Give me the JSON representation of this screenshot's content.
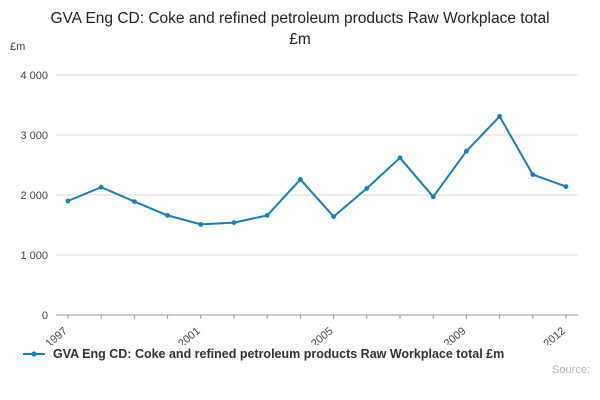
{
  "title": "GVA Eng CD: Coke and refined petroleum products Raw Workplace total £m",
  "footer": {
    "source_label": "Source:"
  },
  "chart_data": {
    "type": "line",
    "title": "GVA Eng CD: Coke and refined petroleum products Raw Workplace total £m",
    "x": [
      1997,
      1998,
      1999,
      2000,
      2001,
      2002,
      2003,
      2004,
      2005,
      2006,
      2007,
      2008,
      2009,
      2010,
      2011,
      2012
    ],
    "series": [
      {
        "name": "GVA Eng CD: Coke and refined petroleum products Raw Workplace total £m",
        "values": [
          1900,
          2130,
          1890,
          1660,
          1510,
          1540,
          1660,
          2260,
          1640,
          2110,
          2620,
          1970,
          2730,
          3310,
          2340,
          2140
        ]
      }
    ],
    "ylabel": "£m",
    "xlabel": "",
    "ylim": [
      0,
      4000
    ],
    "yticks": [
      0,
      1000,
      2000,
      3000,
      4000
    ],
    "ytick_labels": [
      "0",
      "1 000",
      "2 000",
      "3 000",
      "4 000"
    ],
    "xticks": [
      1997,
      2001,
      2005,
      2009,
      2012
    ],
    "line_color": "#1b7eb8",
    "grid_color": "#d9d9d9",
    "axis_color": "#999999",
    "tick_label_color": "#444444",
    "grid": true,
    "legend_position": "bottom"
  }
}
